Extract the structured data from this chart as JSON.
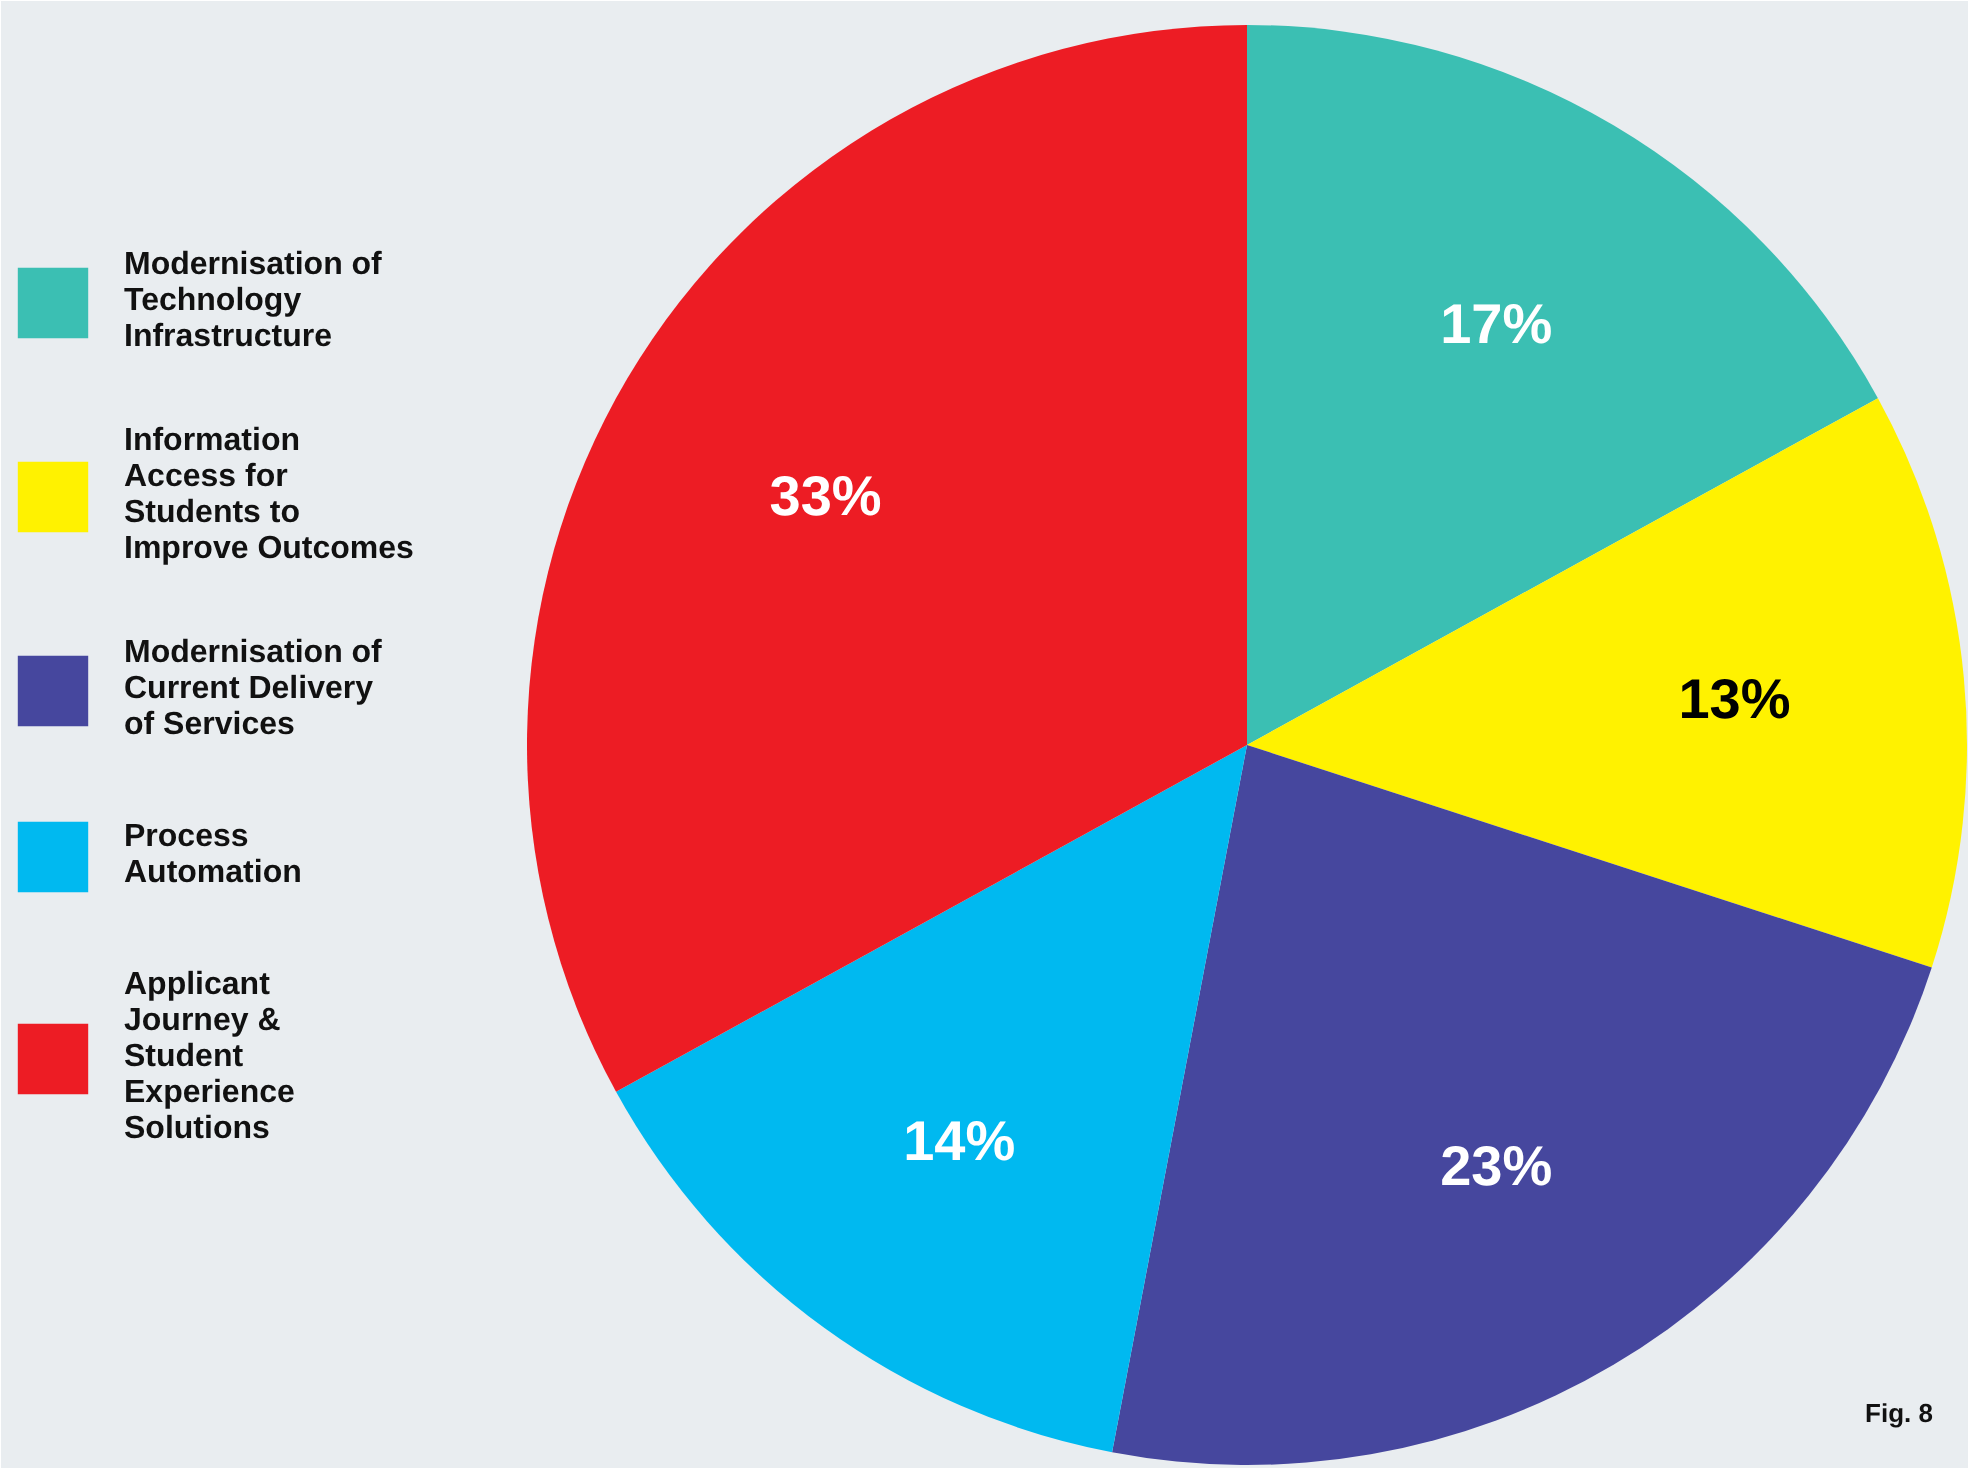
{
  "chart_data": {
    "type": "pie",
    "categories": [
      "Modernisation of Technology Infrastructure",
      "Information Access for Students to Improve Outcomes",
      "Modernisation of Current Delivery of Services",
      "Process Automation",
      "Applicant Journey & Student Experience Solutions"
    ],
    "values": [
      17,
      13,
      23,
      14,
      33
    ],
    "colors": [
      "#3bbfb3",
      "#fff200",
      "#46479e",
      "#00b9f0",
      "#ed1c24"
    ],
    "value_labels": [
      "17%",
      "13%",
      "23%",
      "14%",
      "33%"
    ],
    "legend": "left",
    "annotations": [
      "Fig. 8"
    ]
  }
}
